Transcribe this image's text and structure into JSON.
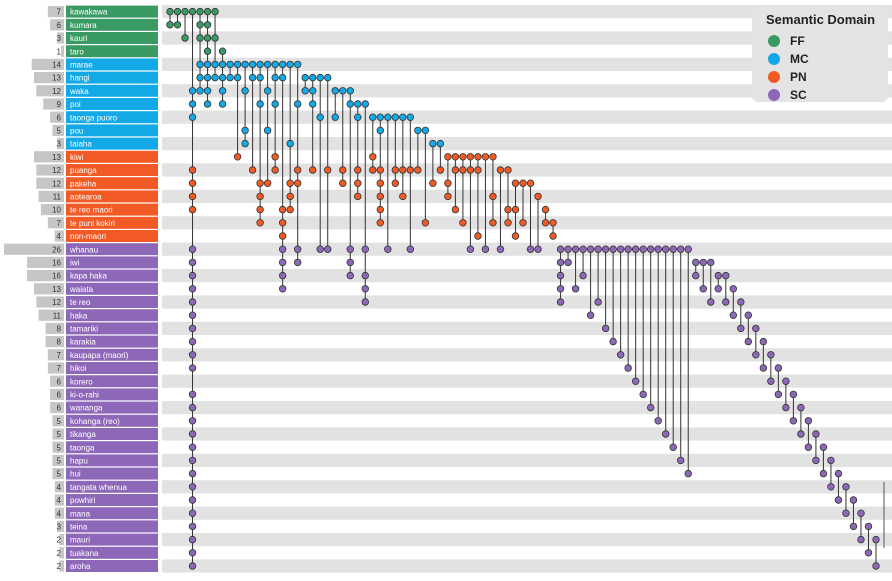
{
  "chart_data": {
    "type": "upset-matrix",
    "colors": {
      "FF": "#3a9a63",
      "MC": "#12a9e6",
      "PN": "#f15a24",
      "SC": "#8e68b8"
    },
    "legend": {
      "title": "Semantic Domain",
      "entries": [
        "FF",
        "MC",
        "PN",
        "SC"
      ]
    },
    "terms": [
      {
        "name": "kawakawa",
        "count": 7,
        "domain": "FF"
      },
      {
        "name": "kumara",
        "count": 6,
        "domain": "FF"
      },
      {
        "name": "kauri",
        "count": 3,
        "domain": "FF"
      },
      {
        "name": "taro",
        "count": 1,
        "domain": "FF"
      },
      {
        "name": "marae",
        "count": 14,
        "domain": "MC"
      },
      {
        "name": "hangi",
        "count": 13,
        "domain": "MC"
      },
      {
        "name": "waka",
        "count": 12,
        "domain": "MC"
      },
      {
        "name": "poi",
        "count": 9,
        "domain": "MC"
      },
      {
        "name": "taonga puoro",
        "count": 6,
        "domain": "MC"
      },
      {
        "name": "pou",
        "count": 5,
        "domain": "MC"
      },
      {
        "name": "taiaha",
        "count": 3,
        "domain": "MC"
      },
      {
        "name": "kiwi",
        "count": 13,
        "domain": "PN"
      },
      {
        "name": "puanga",
        "count": 12,
        "domain": "PN"
      },
      {
        "name": "pakeha",
        "count": 12,
        "domain": "PN"
      },
      {
        "name": "aotearoa",
        "count": 11,
        "domain": "PN"
      },
      {
        "name": "te reo maori",
        "count": 10,
        "domain": "PN"
      },
      {
        "name": "te puni kokiri",
        "count": 7,
        "domain": "PN"
      },
      {
        "name": "non-maori",
        "count": 4,
        "domain": "PN"
      },
      {
        "name": "whanau",
        "count": 26,
        "domain": "SC"
      },
      {
        "name": "iwi",
        "count": 16,
        "domain": "SC"
      },
      {
        "name": "kapa haka",
        "count": 16,
        "domain": "SC"
      },
      {
        "name": "waiata",
        "count": 13,
        "domain": "SC"
      },
      {
        "name": "te reo",
        "count": 12,
        "domain": "SC"
      },
      {
        "name": "haka",
        "count": 11,
        "domain": "SC"
      },
      {
        "name": "tamariki",
        "count": 8,
        "domain": "SC"
      },
      {
        "name": "karakia",
        "count": 8,
        "domain": "SC"
      },
      {
        "name": "kaupapa (maori)",
        "count": 7,
        "domain": "SC"
      },
      {
        "name": "hikoi",
        "count": 7,
        "domain": "SC"
      },
      {
        "name": "korero",
        "count": 6,
        "domain": "SC"
      },
      {
        "name": "ki-o-rahi",
        "count": 6,
        "domain": "SC"
      },
      {
        "name": "wananga",
        "count": 6,
        "domain": "SC"
      },
      {
        "name": "kohanga (reo)",
        "count": 5,
        "domain": "SC"
      },
      {
        "name": "tikanga",
        "count": 5,
        "domain": "SC"
      },
      {
        "name": "taonga",
        "count": 5,
        "domain": "SC"
      },
      {
        "name": "hapu",
        "count": 5,
        "domain": "SC"
      },
      {
        "name": "hui",
        "count": 5,
        "domain": "SC"
      },
      {
        "name": "tangata whenua",
        "count": 4,
        "domain": "SC"
      },
      {
        "name": "powhiri",
        "count": 4,
        "domain": "SC"
      },
      {
        "name": "mana",
        "count": 4,
        "domain": "SC"
      },
      {
        "name": "teina",
        "count": 3,
        "domain": "SC"
      },
      {
        "name": "mauri",
        "count": 2,
        "domain": "SC"
      },
      {
        "name": "tuakana",
        "count": 2,
        "domain": "SC"
      },
      {
        "name": "aroha",
        "count": 2,
        "domain": "SC"
      }
    ],
    "sets": [
      [
        0,
        1
      ],
      [
        0,
        1
      ],
      [
        0,
        2
      ],
      [
        0,
        6,
        7,
        8,
        12,
        13,
        14,
        15,
        18,
        19,
        20,
        21,
        22,
        23,
        24,
        25,
        26,
        27,
        29,
        30,
        31,
        32,
        33,
        34,
        35,
        36,
        37,
        38,
        39,
        40,
        41,
        42
      ],
      [
        0,
        1,
        2,
        4,
        5,
        6
      ],
      [
        0,
        1,
        2,
        3,
        4,
        5,
        6,
        7
      ],
      [
        0,
        2,
        4,
        5
      ],
      [
        3,
        4,
        5,
        6,
        7
      ],
      [
        4,
        5
      ],
      [
        4,
        5,
        11
      ],
      [
        4,
        6,
        9,
        10
      ],
      [
        4,
        5,
        12
      ],
      [
        4,
        5,
        7,
        13,
        14,
        15,
        16
      ],
      [
        4,
        6,
        9,
        13
      ],
      [
        4,
        5,
        7,
        11,
        12
      ],
      [
        4,
        5,
        15,
        16,
        17,
        18,
        19,
        20,
        21
      ],
      [
        4,
        10,
        13,
        14,
        15
      ],
      [
        4,
        7,
        12,
        13,
        18,
        19
      ],
      [
        5,
        6
      ],
      [
        5,
        6,
        7,
        12
      ],
      [
        5,
        8,
        18
      ],
      [
        5,
        12,
        18
      ],
      [
        6,
        8
      ],
      [
        6,
        12,
        13
      ],
      [
        6,
        7,
        18,
        19,
        20
      ],
      [
        7,
        8,
        12,
        13,
        14
      ],
      [
        7,
        18,
        20,
        21,
        22
      ],
      [
        8,
        11,
        12
      ],
      [
        8,
        9,
        12,
        13,
        14,
        15,
        16
      ],
      [
        8,
        18
      ],
      [
        8,
        12,
        13
      ],
      [
        8,
        12,
        14
      ],
      [
        8,
        12,
        18
      ],
      [
        9,
        12
      ],
      [
        9,
        16
      ],
      [
        10,
        13
      ],
      [
        10,
        12
      ],
      [
        11,
        13,
        14
      ],
      [
        11,
        12,
        15
      ],
      [
        11,
        12,
        16
      ],
      [
        11,
        12,
        18
      ],
      [
        11,
        12,
        17
      ],
      [
        11,
        18
      ],
      [
        11,
        14,
        16
      ],
      [
        12,
        18
      ],
      [
        12,
        15,
        16
      ],
      [
        13,
        15,
        17
      ],
      [
        13,
        16
      ],
      [
        13,
        18
      ],
      [
        14,
        18
      ],
      [
        15,
        16
      ],
      [
        16,
        17
      ],
      [
        18,
        19,
        20,
        21,
        22
      ],
      [
        18,
        19
      ],
      [
        18,
        21
      ],
      [
        18,
        20
      ],
      [
        18,
        23
      ],
      [
        18,
        22
      ],
      [
        18,
        24
      ],
      [
        18,
        25
      ],
      [
        18,
        26
      ],
      [
        18,
        27
      ],
      [
        18,
        28
      ],
      [
        18,
        29
      ],
      [
        18,
        30
      ],
      [
        18,
        31
      ],
      [
        18,
        32
      ],
      [
        18,
        33
      ],
      [
        18,
        34
      ],
      [
        18,
        35
      ],
      [
        19,
        20
      ],
      [
        19,
        21
      ],
      [
        19,
        22
      ],
      [
        20,
        21
      ],
      [
        20,
        22
      ],
      [
        21,
        23
      ],
      [
        22,
        24
      ],
      [
        23,
        25
      ],
      [
        24,
        26
      ],
      [
        25,
        27
      ],
      [
        26,
        28
      ],
      [
        27,
        29
      ],
      [
        28,
        30
      ],
      [
        29,
        31
      ],
      [
        30,
        32
      ],
      [
        31,
        33
      ],
      [
        32,
        34
      ],
      [
        33,
        35
      ],
      [
        34,
        36
      ],
      [
        35,
        37
      ],
      [
        36,
        38
      ],
      [
        37,
        39
      ],
      [
        38,
        40
      ],
      [
        39,
        41
      ],
      [
        40,
        42
      ]
    ]
  }
}
